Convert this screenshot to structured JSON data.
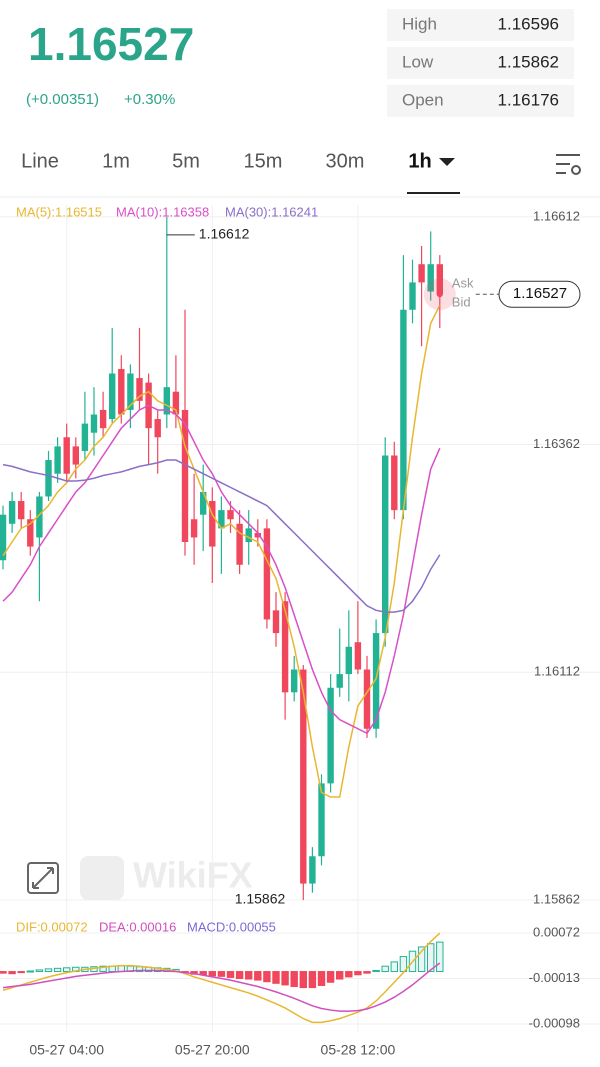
{
  "header": {
    "price": "1.16527",
    "change": "(+0.00351)",
    "change_percent": "+0.30%"
  },
  "stats": [
    {
      "label": "High",
      "value": "1.16596"
    },
    {
      "label": "Low",
      "value": "1.15862"
    },
    {
      "label": "Open",
      "value": "1.16176"
    }
  ],
  "tabs": [
    "Line",
    "1m",
    "5m",
    "15m",
    "30m",
    "1h"
  ],
  "active_tab": "1h",
  "watermark": "WikiFX",
  "chart_data": [
    {
      "type": "candlestick",
      "categories": [
        null,
        null,
        null,
        null,
        null,
        null,
        null,
        "05-27 04:00",
        null,
        null,
        null,
        null,
        null,
        null,
        null,
        null,
        null,
        null,
        null,
        null,
        null,
        null,
        null,
        "05-27 20:00",
        null,
        null,
        null,
        null,
        null,
        null,
        null,
        null,
        null,
        null,
        null,
        null,
        null,
        null,
        null,
        "05-28 12:00",
        null,
        null,
        null,
        null,
        null,
        null,
        null,
        null,
        null
      ],
      "open": [
        1.16235,
        1.16275,
        1.163,
        1.1628,
        1.1626,
        1.16305,
        1.1633,
        1.1637,
        1.1636,
        1.16355,
        1.16375,
        1.164,
        1.1639,
        1.16445,
        1.164,
        1.16435,
        1.1643,
        1.1639,
        1.16395,
        1.1642,
        1.164,
        1.1628,
        1.16285,
        1.163,
        1.1627,
        1.1629,
        1.16275,
        1.16255,
        1.16265,
        1.1627,
        1.1618,
        1.1619,
        1.1609,
        1.16115,
        1.1588,
        1.1591,
        1.1599,
        1.16095,
        1.1611,
        1.16145,
        1.16115,
        1.1605,
        1.16155,
        1.1635,
        1.1629,
        1.1651,
        1.1656,
        1.1653,
        1.1656
      ],
      "high": [
        1.16295,
        1.1631,
        1.1631,
        1.1629,
        1.1631,
        1.16355,
        1.1637,
        1.16385,
        1.1637,
        1.1642,
        1.16425,
        1.1642,
        1.1649,
        1.1646,
        1.1645,
        1.1649,
        1.1644,
        1.164,
        1.16612,
        1.1646,
        1.1651,
        1.1633,
        1.1634,
        1.16315,
        1.16305,
        1.163,
        1.1629,
        1.1629,
        1.1628,
        1.1628,
        1.162,
        1.162,
        1.1613,
        1.1612,
        1.1592,
        1.16,
        1.1611,
        1.1616,
        1.1618,
        1.1619,
        1.1613,
        1.1617,
        1.1637,
        1.16365,
        1.1657,
        1.16565,
        1.1658,
        1.16596,
        1.1657
      ],
      "low": [
        1.16225,
        1.16265,
        1.1627,
        1.1624,
        1.1619,
        1.163,
        1.1632,
        1.1632,
        1.16325,
        1.16345,
        1.1635,
        1.1637,
        1.16385,
        1.16385,
        1.1638,
        1.164,
        1.1634,
        1.1633,
        1.1638,
        1.1638,
        1.1624,
        1.1623,
        1.16245,
        1.1621,
        1.1622,
        1.16265,
        1.1622,
        1.1623,
        1.1625,
        1.1616,
        1.1614,
        1.1606,
        1.1608,
        1.15862,
        1.1587,
        1.159,
        1.1598,
        1.16085,
        1.1608,
        1.1611,
        1.1604,
        1.1604,
        1.1614,
        1.1628,
        1.1628,
        1.16495,
        1.1647,
        1.1652,
        1.1649
      ],
      "close": [
        1.16285,
        1.163,
        1.1628,
        1.1625,
        1.16305,
        1.16345,
        1.1636,
        1.1633,
        1.1634,
        1.16385,
        1.16395,
        1.1638,
        1.1644,
        1.16395,
        1.1644,
        1.1641,
        1.1638,
        1.1637,
        1.16425,
        1.16395,
        1.16255,
        1.1626,
        1.1631,
        1.1625,
        1.1629,
        1.1628,
        1.1623,
        1.1627,
        1.1626,
        1.1617,
        1.16155,
        1.1609,
        1.16115,
        1.1588,
        1.1591,
        1.1599,
        1.16095,
        1.1611,
        1.1614,
        1.16115,
        1.1605,
        1.16155,
        1.1635,
        1.1629,
        1.1651,
        1.1654,
        1.1654,
        1.1656,
        1.16527
      ],
      "up_color": "#22b394",
      "down_color": "#f0475c",
      "series": [
        {
          "name": "MA(5):1.16515",
          "color": "#e8b730",
          "values": [
            1.1624,
            1.16255,
            1.1627,
            1.16275,
            1.16285,
            1.16295,
            1.1631,
            1.1632,
            1.16335,
            1.16345,
            1.1636,
            1.1637,
            1.16385,
            1.16395,
            1.16405,
            1.16415,
            1.1642,
            1.1641,
            1.16405,
            1.164,
            1.1636,
            1.16335,
            1.1631,
            1.16285,
            1.1627,
            1.16275,
            1.16265,
            1.1626,
            1.16255,
            1.16235,
            1.16215,
            1.1618,
            1.1614,
            1.1609,
            1.1603,
            1.1598,
            1.15975,
            1.15975,
            1.1603,
            1.16075,
            1.1609,
            1.16105,
            1.1615,
            1.1621,
            1.1629,
            1.1637,
            1.1644,
            1.16495,
            1.16515
          ]
        },
        {
          "name": "MA(10):1.16358",
          "color": "#d94fc8",
          "values": [
            1.1619,
            1.162,
            1.16215,
            1.1623,
            1.1625,
            1.16265,
            1.1628,
            1.16295,
            1.1631,
            1.1632,
            1.16335,
            1.1635,
            1.16365,
            1.1638,
            1.1639,
            1.164,
            1.16405,
            1.164,
            1.164,
            1.16395,
            1.16385,
            1.16365,
            1.16345,
            1.1633,
            1.1631,
            1.16295,
            1.16285,
            1.16275,
            1.16265,
            1.1625,
            1.1623,
            1.16205,
            1.16175,
            1.16145,
            1.16115,
            1.1609,
            1.1607,
            1.1606,
            1.16055,
            1.1605,
            1.16045,
            1.1606,
            1.1609,
            1.1613,
            1.16175,
            1.1623,
            1.16285,
            1.16335,
            1.16358
          ]
        },
        {
          "name": "MA(30):1.16241",
          "color": "#8a6fc9",
          "values": [
            1.1634,
            1.16338,
            1.16335,
            1.16332,
            1.1633,
            1.16328,
            1.16325,
            1.16322,
            1.16322,
            1.16323,
            1.16325,
            1.16328,
            1.1633,
            1.16332,
            1.16335,
            1.16338,
            1.1634,
            1.16342,
            1.16345,
            1.16345,
            1.1634,
            1.16335,
            1.1633,
            1.16325,
            1.1632,
            1.16315,
            1.1631,
            1.16305,
            1.163,
            1.16295,
            1.16285,
            1.16275,
            1.16265,
            1.16255,
            1.16245,
            1.16235,
            1.16225,
            1.16215,
            1.16205,
            1.16195,
            1.16185,
            1.1618,
            1.16178,
            1.16178,
            1.1618,
            1.1619,
            1.16205,
            1.16225,
            1.16241
          ]
        }
      ],
      "ylim": [
        1.15851,
        1.16625
      ],
      "yticks": [
        1.16612,
        1.16362,
        1.16112,
        1.15862
      ],
      "grid": true,
      "high_label": "1.16612",
      "low_label": "1.15862",
      "last_price_label": "1.16527",
      "ask_label": "Ask",
      "bid_label": "Bid"
    },
    {
      "type": "macd",
      "series": [
        {
          "name": "DIF:0.00072",
          "color": "#e8b730",
          "style": "line",
          "values": [
            -0.00035,
            -0.0003,
            -0.00025,
            -0.0002,
            -0.00015,
            -0.0001,
            -6e-05,
            -2e-05,
            1e-05,
            4e-05,
            6e-05,
            8e-05,
            0.0001,
            0.00011,
            0.00011,
            0.0001,
            8e-05,
            6e-05,
            4e-05,
            1e-05,
            -4e-05,
            -0.0001,
            -0.00015,
            -0.0002,
            -0.00025,
            -0.0003,
            -0.00035,
            -0.0004,
            -0.00046,
            -0.00053,
            -0.0006,
            -0.00068,
            -0.00078,
            -0.00088,
            -0.00095,
            -0.00095,
            -0.00092,
            -0.00088,
            -0.00082,
            -0.00076,
            -0.00068,
            -0.00055,
            -0.00038,
            -0.0002,
            -2e-05,
            0.00018,
            0.00038,
            0.00056,
            0.00072
          ]
        },
        {
          "name": "DEA:0.00016",
          "color": "#d14fbf",
          "style": "line",
          "values": [
            -0.0003,
            -0.00028,
            -0.00026,
            -0.00024,
            -0.00021,
            -0.00018,
            -0.00015,
            -0.00012,
            -9e-05,
            -7e-05,
            -5e-05,
            -3e-05,
            -1e-05,
            0,
            1e-05,
            2e-05,
            2e-05,
            2e-05,
            1e-05,
            0,
            -2e-05,
            -4e-05,
            -7e-05,
            -0.0001,
            -0.00013,
            -0.00016,
            -0.0002,
            -0.00024,
            -0.00028,
            -0.00033,
            -0.00038,
            -0.00044,
            -0.0005,
            -0.00057,
            -0.00064,
            -0.00069,
            -0.00072,
            -0.00074,
            -0.00074,
            -0.00073,
            -0.0007,
            -0.00064,
            -0.00057,
            -0.00048,
            -0.00037,
            -0.00025,
            -0.00011,
            3e-05,
            0.00016
          ]
        },
        {
          "name": "MACD:0.00055",
          "color": "#7b68d6",
          "style": "bar",
          "values": [
            -3e-05,
            -4e-05,
            -2e-05,
            1e-05,
            3e-05,
            5e-05,
            6e-05,
            7e-05,
            8e-05,
            8e-05,
            9e-05,
            0.0001,
            0.0001,
            0.00011,
            0.0001,
            9e-05,
            8e-05,
            7e-05,
            6e-05,
            4e-05,
            -2e-05,
            -5e-05,
            -6e-05,
            -8e-05,
            -9e-05,
            -0.00011,
            -0.00013,
            -0.00014,
            -0.00016,
            -0.00019,
            -0.00022,
            -0.00025,
            -0.00028,
            -0.0003,
            -0.0003,
            -0.00026,
            -0.0002,
            -0.00014,
            -0.0001,
            -6e-05,
            -3e-05,
            2e-05,
            0.0001,
            0.00018,
            0.00028,
            0.00038,
            0.00046,
            0.00052,
            0.00055
          ]
        }
      ],
      "ylim": [
        -0.00113,
        0.00087
      ],
      "yticks": [
        0.00072,
        -0.00013,
        -0.00098
      ]
    }
  ]
}
